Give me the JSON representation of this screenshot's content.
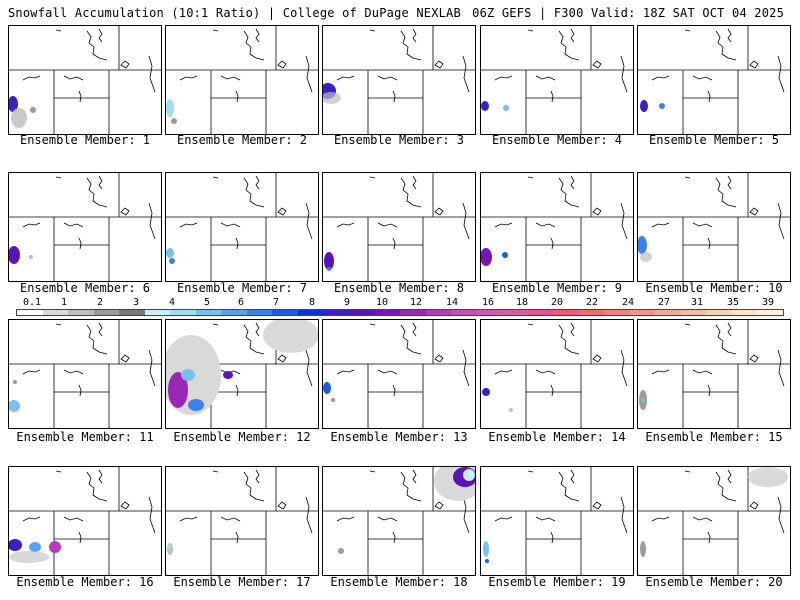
{
  "header": {
    "left": "Snowfall Accumulation (10:1 Ratio) | College of DuPage NEXLAB",
    "right": "06Z GEFS | F300 Valid: 18Z SAT OCT 04 2025"
  },
  "member_label_prefix": "Ensemble Member: ",
  "members": [
    "1",
    "2",
    "3",
    "4",
    "5",
    "6",
    "7",
    "8",
    "9",
    "10",
    "11",
    "12",
    "13",
    "14",
    "15",
    "16",
    "17",
    "18",
    "19",
    "20"
  ],
  "legend": {
    "labels": [
      "0.1",
      "1",
      "2",
      "3",
      "4",
      "5",
      "6",
      "7",
      "8",
      "9",
      "10",
      "12",
      "14",
      "16",
      "18",
      "20",
      "22",
      "24",
      "27",
      "31",
      "35",
      "39"
    ],
    "colors": [
      "#ffffff",
      "#d9d9d9",
      "#bdbdbd",
      "#9a9a9a",
      "#7a7a7a",
      "#c8f0f8",
      "#a0dcf5",
      "#78c0f0",
      "#5aa0ec",
      "#3c80e8",
      "#1e5ae6",
      "#0a32dc",
      "#3c1ec8",
      "#5a14b4",
      "#7814b4",
      "#9628b4",
      "#b43cb4",
      "#c850b4",
      "#d25aaa",
      "#dc5aa0",
      "#e6508c",
      "#f05a78",
      "#f06e6e",
      "#f08282",
      "#f0968c",
      "#f0aa96",
      "#f0bea5",
      "#f5d2b4",
      "#fae1c8",
      "#fff0dc"
    ]
  }
}
